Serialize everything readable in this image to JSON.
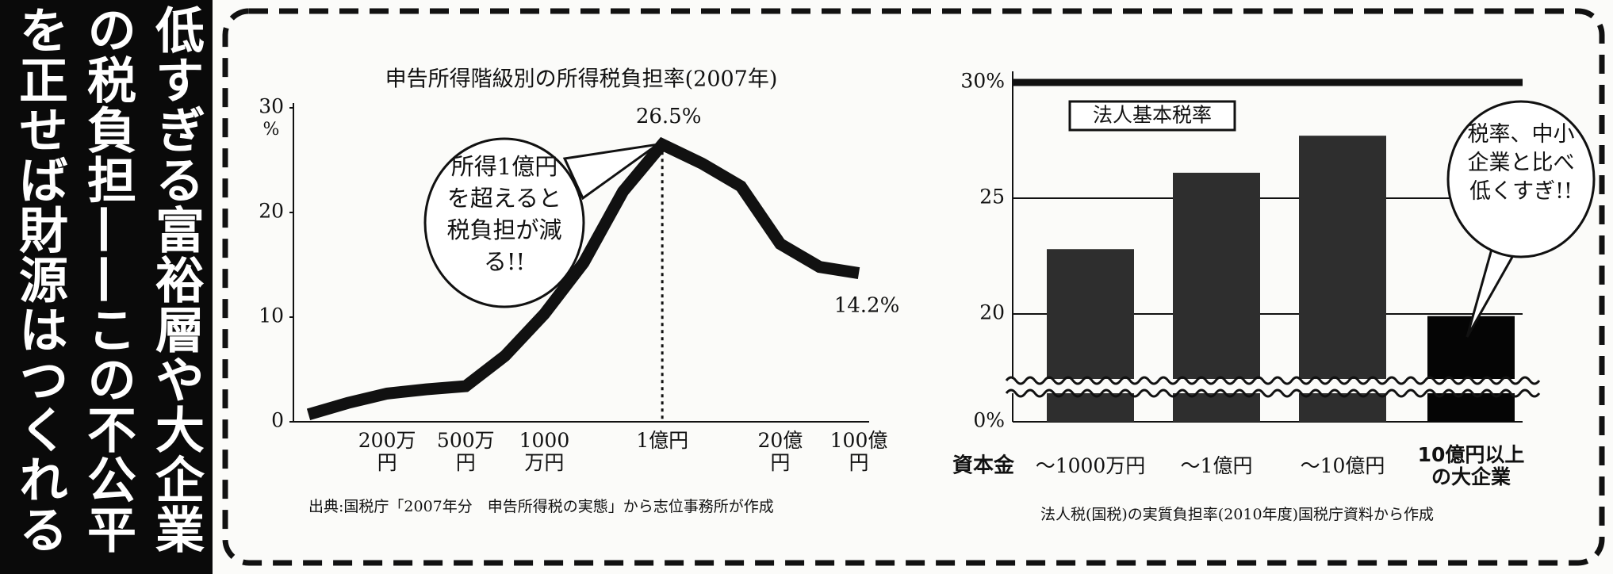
{
  "headline": {
    "lines": [
      "低すぎる富裕層や大企業",
      "の税負担——この不公平",
      "を正せば財源はつくれる"
    ]
  },
  "chart_data": [
    {
      "type": "line",
      "title": "申告所得階級別の所得税負担率(2007年)",
      "y_unit": "%",
      "categories": [
        null,
        null,
        "200万円",
        null,
        "500万円",
        null,
        "1000万円",
        null,
        null,
        "1億円",
        null,
        null,
        "20億円",
        null,
        "100億円"
      ],
      "values": [
        0.7,
        1.8,
        2.7,
        3.1,
        3.4,
        6.3,
        10.3,
        15.2,
        22,
        26.5,
        24.7,
        22.5,
        17,
        14.8,
        14.2
      ],
      "value_labels": [
        null,
        null,
        null,
        null,
        null,
        null,
        null,
        null,
        null,
        "26.5%",
        null,
        null,
        null,
        null,
        "14.2%"
      ],
      "color": "#111111",
      "ylim": [
        0,
        30
      ],
      "yticks": [
        0,
        10,
        20,
        30
      ],
      "annotation": "所得1億円を超えると税負担が減る!!",
      "source": "出典:国税庁「2007年分　申告所得税の実態」から志位事務所が作成"
    },
    {
      "type": "bar",
      "axis_title": "資本金",
      "categories": [
        "～1000万円",
        "～1億円",
        "～10億円",
        "10億円以上の大企業"
      ],
      "values": [
        22.8,
        26.1,
        27.7,
        19.6
      ],
      "colors": [
        "#2e2e2e",
        "#2e2e2e",
        "#2e2e2e",
        "#050505"
      ],
      "ylim": [
        0,
        30
      ],
      "yticks": [
        {
          "value": 0,
          "label": "0%"
        },
        20,
        25,
        {
          "value": 30,
          "label": "30%"
        }
      ],
      "axis_break": true,
      "grid": true,
      "reference_line": {
        "value": 30,
        "label": "法人基本税率"
      },
      "annotation": "税率、中小企業と比べ低くすぎ!!",
      "source": "法人税(国税)の実質負担率(2010年度)国税庁資料から作成"
    }
  ]
}
